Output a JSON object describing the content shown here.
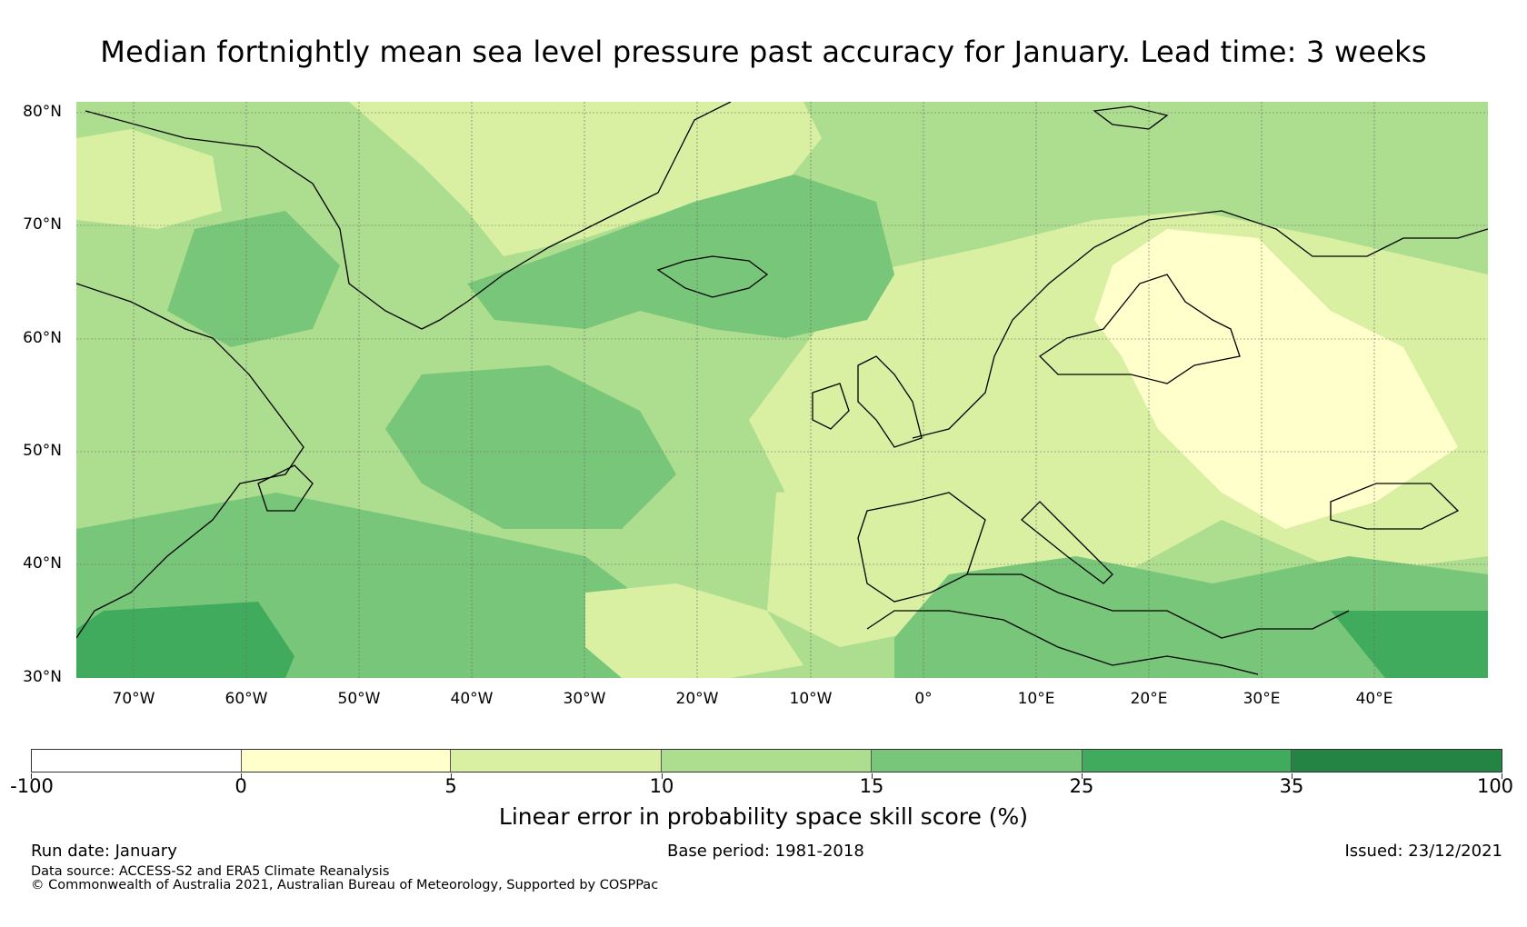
{
  "title": "Median fortnightly mean sea level pressure past accuracy for January. Lead time: 3 weeks",
  "map": {
    "lat_labels": [
      "80°N",
      "70°N",
      "60°N",
      "50°N",
      "40°N",
      "30°N"
    ],
    "lon_labels": [
      "70°W",
      "60°W",
      "50°W",
      "40°W",
      "30°W",
      "20°W",
      "10°W",
      "0°",
      "10°E",
      "20°E",
      "30°E",
      "40°E"
    ],
    "colors": {
      "c0": "#ffffcc",
      "c5": "#d9f0a3",
      "c10": "#addd8e",
      "c15": "#78c679",
      "c25": "#41ab5d",
      "c35": "#238443",
      "coast": "#000000",
      "grid": "#666666"
    }
  },
  "colorbar": {
    "segments": [
      {
        "from": "-100",
        "to": "0",
        "color": "#ffffff"
      },
      {
        "from": "0",
        "to": "5",
        "color": "#ffffcc"
      },
      {
        "from": "5",
        "to": "10",
        "color": "#d9f0a3"
      },
      {
        "from": "10",
        "to": "15",
        "color": "#addd8e"
      },
      {
        "from": "15",
        "to": "25",
        "color": "#78c679"
      },
      {
        "from": "25",
        "to": "35",
        "color": "#41ab5d"
      },
      {
        "from": "35",
        "to": "100",
        "color": "#238443"
      }
    ],
    "tick_labels": [
      "-100",
      "0",
      "5",
      "10",
      "15",
      "25",
      "35",
      "100"
    ],
    "label": "Linear error in probability space skill score (%)"
  },
  "footer": {
    "run_date": "Run date: January",
    "base_period": "Base period: 1981-2018",
    "issued": "Issued: 23/12/2021",
    "data_source": "Data source: ACCESS-S2 and ERA5 Climate Reanalysis",
    "copyright": "© Commonwealth of Australia 2021, Australian Bureau of Meteorology, Supported by COSPPac"
  }
}
